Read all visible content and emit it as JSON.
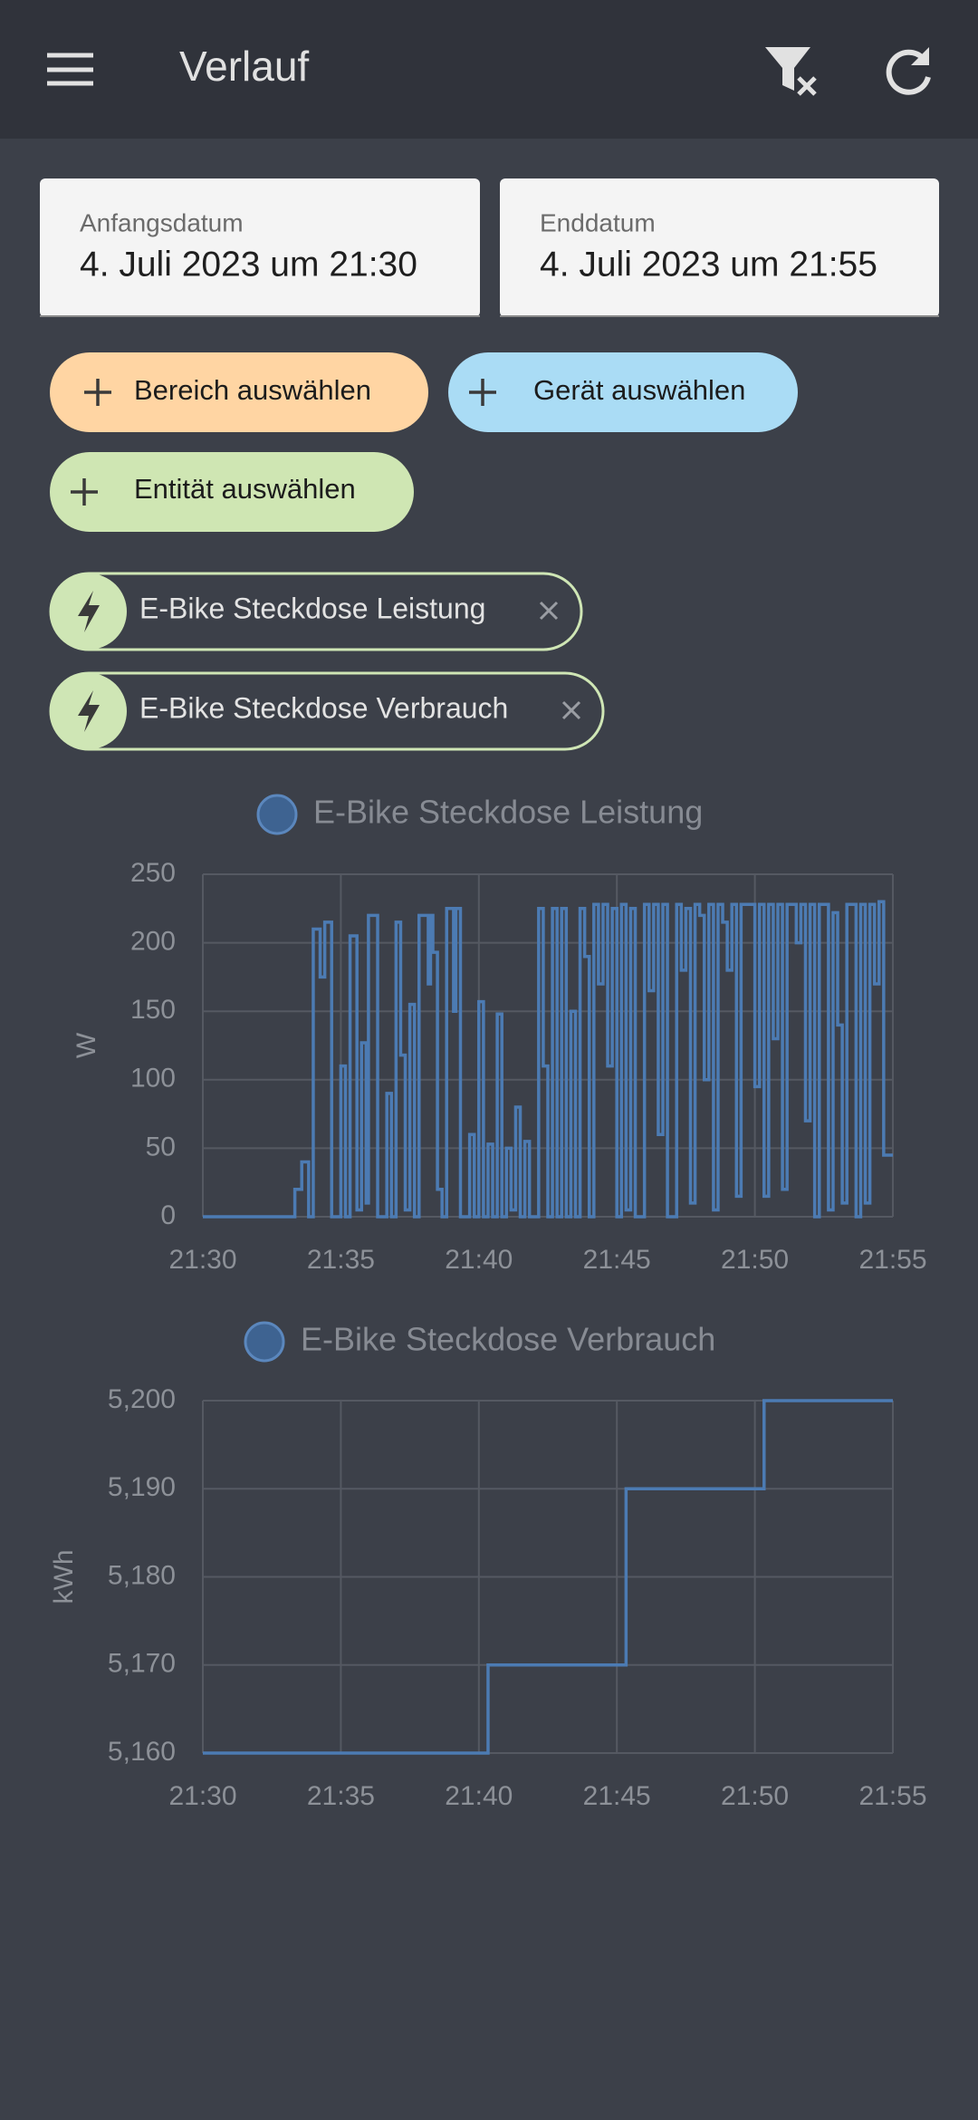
{
  "header": {
    "title": "Verlauf"
  },
  "dates": {
    "start_label": "Anfangsdatum",
    "start_value": "4. Juli 2023 um 21:30",
    "end_label": "Enddatum",
    "end_value": "4. Juli 2023 um 21:55"
  },
  "pickers": [
    "Bereich auswählen",
    "Gerät auswählen",
    "Entität auswählen"
  ],
  "selected": [
    "E-Bike Steckdose Leistung",
    "E-Bike Steckdose Verbrauch"
  ],
  "chart_data": [
    {
      "type": "line",
      "step": true,
      "y_label": "W",
      "grid": true,
      "x": [
        "21:30:00",
        "21:33:20",
        "21:33:35",
        "21:33:50",
        "21:34:00",
        "21:34:15",
        "21:34:25",
        "21:34:40",
        "21:35:00",
        "21:35:10",
        "21:35:20",
        "21:35:35",
        "21:35:45",
        "21:35:55",
        "21:36:00",
        "21:36:20",
        "21:36:40",
        "21:36:50",
        "21:37:00",
        "21:37:10",
        "21:37:20",
        "21:37:30",
        "21:37:40",
        "21:37:50",
        "21:38:10",
        "21:38:15",
        "21:38:20",
        "21:38:30",
        "21:38:40",
        "21:38:50",
        "21:39:05",
        "21:39:10",
        "21:39:20",
        "21:39:40",
        "21:39:50",
        "21:40:00",
        "21:40:10",
        "21:40:20",
        "21:40:30",
        "21:40:40",
        "21:40:50",
        "21:41:00",
        "21:41:10",
        "21:41:20",
        "21:41:30",
        "21:41:40",
        "21:41:50",
        "21:42:10",
        "21:42:20",
        "21:42:30",
        "21:42:40",
        "21:42:50",
        "21:43:00",
        "21:43:10",
        "21:43:20",
        "21:43:30",
        "21:43:40",
        "21:43:50",
        "21:44:00",
        "21:44:10",
        "21:44:20",
        "21:44:30",
        "21:44:40",
        "21:44:50",
        "21:45:00",
        "21:45:10",
        "21:45:20",
        "21:45:30",
        "21:45:40",
        "21:46:00",
        "21:46:10",
        "21:46:20",
        "21:46:30",
        "21:46:40",
        "21:46:50",
        "21:47:10",
        "21:47:20",
        "21:47:30",
        "21:47:40",
        "21:47:50",
        "21:48:00",
        "21:48:10",
        "21:48:20",
        "21:48:30",
        "21:48:40",
        "21:48:50",
        "21:49:00",
        "21:49:10",
        "21:49:20",
        "21:49:30",
        "21:50:00",
        "21:50:10",
        "21:50:20",
        "21:50:30",
        "21:50:40",
        "21:50:50",
        "21:51:00",
        "21:51:10",
        "21:51:30",
        "21:51:40",
        "21:51:50",
        "21:52:00",
        "21:52:10",
        "21:52:20",
        "21:52:40",
        "21:52:50",
        "21:53:00",
        "21:53:10",
        "21:53:20",
        "21:53:40",
        "21:53:50",
        "21:54:00",
        "21:54:10",
        "21:54:20",
        "21:54:30",
        "21:54:40",
        "21:55:00"
      ],
      "series": [
        {
          "name": "E-Bike Steckdose Leistung",
          "color": "#4c7bb3",
          "values": [
            0,
            20,
            40,
            0,
            210,
            175,
            215,
            0,
            110,
            0,
            205,
            5,
            127,
            10,
            220,
            0,
            90,
            0,
            215,
            118,
            5,
            155,
            0,
            220,
            170,
            220,
            193,
            20,
            0,
            225,
            150,
            225,
            0,
            60,
            0,
            157,
            0,
            53,
            0,
            148,
            0,
            50,
            5,
            80,
            0,
            55,
            0,
            225,
            110,
            0,
            225,
            0,
            225,
            0,
            150,
            0,
            225,
            190,
            0,
            228,
            170,
            228,
            110,
            225,
            0,
            228,
            5,
            225,
            0,
            228,
            165,
            228,
            60,
            228,
            0,
            228,
            180,
            225,
            10,
            228,
            220,
            100,
            228,
            5,
            228,
            215,
            180,
            228,
            15,
            228,
            95,
            228,
            15,
            228,
            130,
            228,
            20,
            228,
            200,
            228,
            70,
            228,
            0,
            228,
            5,
            222,
            140,
            10,
            228,
            0,
            228,
            10,
            228,
            170,
            230,
            45,
            45
          ]
        }
      ],
      "xlim": [
        "21:30:00",
        "21:55:00"
      ],
      "xticks": [
        "21:30",
        "21:35",
        "21:40",
        "21:45",
        "21:50",
        "21:55"
      ],
      "ylim": [
        0,
        250
      ],
      "yticks": [
        0,
        50,
        100,
        150,
        200,
        250
      ]
    },
    {
      "type": "line",
      "step": true,
      "y_label": "kWh",
      "grid": true,
      "x": [
        "21:30:00",
        "21:40:20",
        "21:45:20",
        "21:50:20",
        "21:55:00"
      ],
      "series": [
        {
          "name": "E-Bike Steckdose Verbrauch",
          "color": "#4c7bb3",
          "values": [
            5160,
            5170,
            5190,
            5200,
            5200
          ]
        }
      ],
      "xlim": [
        "21:30:00",
        "21:55:00"
      ],
      "xticks": [
        "21:30",
        "21:35",
        "21:40",
        "21:45",
        "21:50",
        "21:55"
      ],
      "ylim": [
        5160,
        5200
      ],
      "yticks": [
        {
          "value": 5160,
          "label": "5,160"
        },
        {
          "value": 5170,
          "label": "5,170"
        },
        {
          "value": 5180,
          "label": "5,180"
        },
        {
          "value": 5190,
          "label": "5,190"
        },
        {
          "value": 5200,
          "label": "5,200"
        }
      ]
    }
  ]
}
